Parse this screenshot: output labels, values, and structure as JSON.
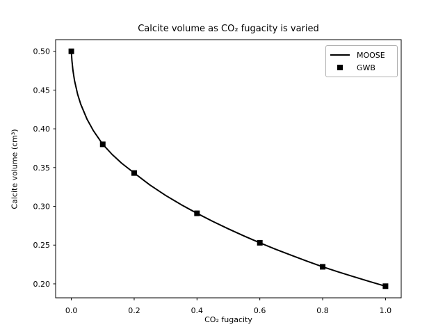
{
  "chart_data": {
    "type": "line",
    "title": "Calcite volume as CO₂ fugacity is varied",
    "xlabel": "CO₂ fugacity",
    "ylabel": "Calcite volume (cm³)",
    "xlim": [
      -0.05,
      1.05
    ],
    "ylim": [
      0.182,
      0.515
    ],
    "xticks": [
      0.0,
      0.2,
      0.4,
      0.6,
      0.8,
      1.0
    ],
    "xtick_labels": [
      "0.0",
      "0.2",
      "0.4",
      "0.6",
      "0.8",
      "1.0"
    ],
    "yticks": [
      0.2,
      0.25,
      0.3,
      0.35,
      0.4,
      0.45,
      0.5
    ],
    "ytick_labels": [
      "0.20",
      "0.25",
      "0.30",
      "0.35",
      "0.40",
      "0.45",
      "0.50"
    ],
    "grid": false,
    "legend_position": "upper right",
    "colors": {
      "line": "#000000",
      "marker": "#000000",
      "spine": "#000000",
      "tick_text": "#000000",
      "legend_border": "#b0b0b0",
      "background": "#ffffff"
    },
    "series": [
      {
        "name": "MOOSE",
        "style": "line",
        "x": [
          0,
          0.002,
          0.005,
          0.01,
          0.02,
          0.03,
          0.05,
          0.07,
          0.1,
          0.13,
          0.16,
          0.2,
          0.25,
          0.3,
          0.35,
          0.4,
          0.45,
          0.5,
          0.55,
          0.6,
          0.65,
          0.7,
          0.75,
          0.8,
          0.85,
          0.9,
          0.95,
          1.0
        ],
        "y": [
          0.5,
          0.4876,
          0.4758,
          0.4625,
          0.4446,
          0.4317,
          0.4124,
          0.3977,
          0.38,
          0.3669,
          0.3557,
          0.343,
          0.3276,
          0.3141,
          0.3021,
          0.291,
          0.2806,
          0.2709,
          0.2617,
          0.253,
          0.2447,
          0.2369,
          0.2293,
          0.222,
          0.2154,
          0.2091,
          0.2029,
          0.197
        ]
      },
      {
        "name": "GWB",
        "style": "marker-square",
        "x": [
          0.0,
          0.1,
          0.2,
          0.4,
          0.6,
          0.8,
          1.0
        ],
        "y": [
          0.5,
          0.38,
          0.343,
          0.291,
          0.253,
          0.222,
          0.197
        ]
      }
    ]
  }
}
